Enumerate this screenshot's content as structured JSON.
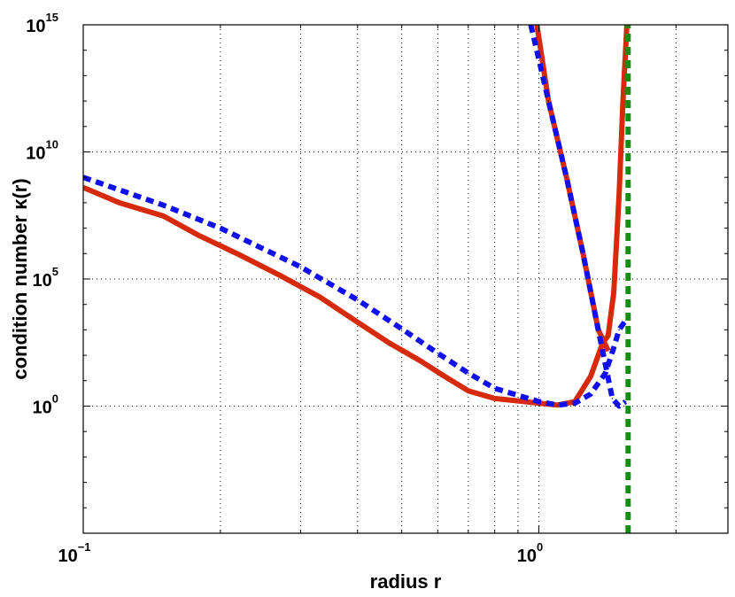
{
  "chart_data": {
    "type": "line",
    "xlabel": "radius r",
    "ylabel": "condition number κ(r)",
    "x_scale": "log",
    "y_scale": "log",
    "xlim": [
      0.1,
      2.6
    ],
    "ylim": [
      1e-05,
      1000000000000000.0
    ],
    "grid": true,
    "x_ticks": [
      {
        "value": 0.1,
        "base": "10",
        "exp": "−1"
      },
      {
        "value": 1,
        "base": "10",
        "exp": "0"
      }
    ],
    "y_ticks": [
      {
        "value": 1,
        "base": "10",
        "exp": "0"
      },
      {
        "value": 100000,
        "base": "10",
        "exp": "5"
      },
      {
        "value": 10000000000,
        "base": "10",
        "exp": "10"
      },
      {
        "value": 1000000000000000.0,
        "base": "10",
        "exp": "15"
      }
    ],
    "series": [
      {
        "color": "#d62a0b",
        "style": "solid",
        "x": [
          0.1,
          0.12,
          0.15,
          0.18,
          0.22,
          0.27,
          0.33,
          0.4,
          0.47,
          0.55,
          0.62,
          0.7,
          0.8,
          0.9,
          1.0,
          1.1,
          1.2,
          1.3,
          1.38,
          1.42,
          1.46,
          1.5,
          1.53,
          1.56
        ],
        "y": [
          400000000.0,
          100000000.0,
          30000000.0,
          5000000.0,
          900000.0,
          140000.0,
          20000.0,
          2000.0,
          300,
          60,
          15,
          4,
          2,
          1.6,
          1.3,
          1.1,
          1.5,
          15,
          300,
          600,
          30000.0,
          200000000.0,
          1000000000000.0,
          1000000000000000.0
        ]
      },
      {
        "color": "#d62a0b",
        "style": "solid",
        "x": [
          0.99,
          1.05,
          1.15,
          1.25,
          1.35,
          1.42
        ],
        "y": [
          1000000000000000.0,
          1000000000000.0,
          1000000000.0,
          1000000.0,
          1000.0,
          150
        ]
      },
      {
        "color": "#1010ee",
        "style": "dashed",
        "x": [
          0.1,
          0.15,
          0.2,
          0.3,
          0.4,
          0.5,
          0.6,
          0.7,
          0.8,
          1.0,
          1.1,
          1.2,
          1.3,
          1.4,
          1.46,
          1.5,
          1.54
        ],
        "y": [
          1000000000.0,
          80000000.0,
          10000000.0,
          300000.0,
          15000.0,
          1100.0,
          120,
          20,
          5,
          1.5,
          1.1,
          1.3,
          3,
          20,
          200,
          1000.0,
          2000.0
        ]
      },
      {
        "color": "#1010ee",
        "style": "dashed",
        "x": [
          0.96,
          1.05,
          1.15,
          1.25,
          1.35,
          1.45,
          1.5,
          1.55
        ],
        "y": [
          1000000000000000.0,
          1000000000000.0,
          1000000000.0,
          1000000.0,
          1000.0,
          2,
          1,
          1.5
        ]
      },
      {
        "color": "#138e13",
        "style": "dashed",
        "x": [
          1.57,
          1.57
        ],
        "y": [
          1e-05,
          1000000000000000.0
        ]
      }
    ]
  }
}
